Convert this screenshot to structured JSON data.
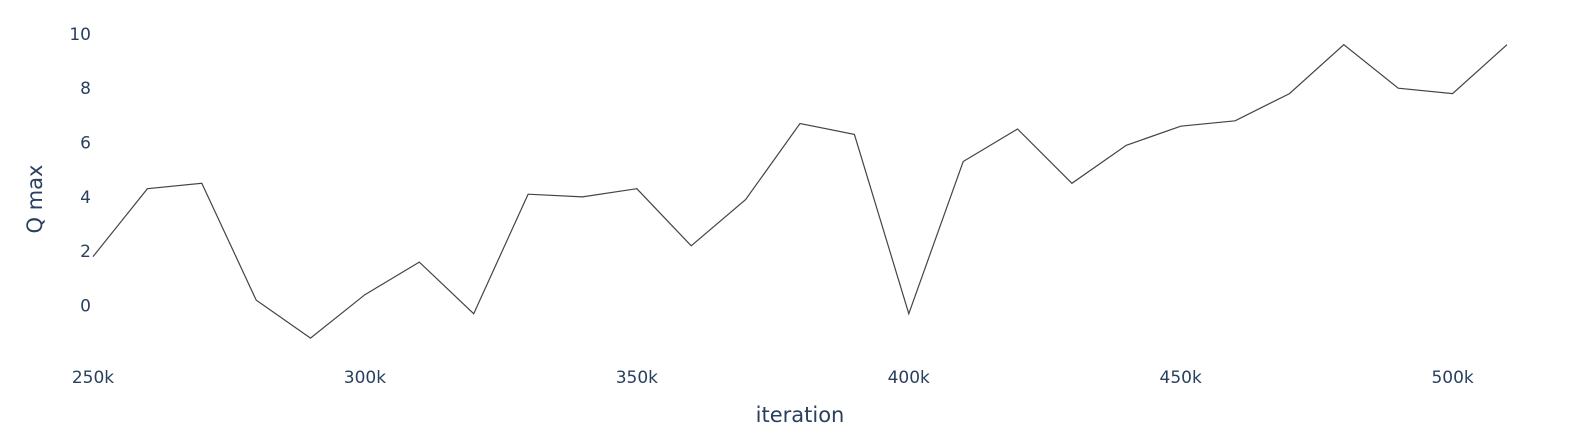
{
  "chart_data": {
    "type": "line",
    "xlabel": "iteration",
    "ylabel": "Q max",
    "xlim": [
      250000,
      510000
    ],
    "ylim": [
      -1.6,
      10.4
    ],
    "x_ticks": [
      250000,
      300000,
      350000,
      400000,
      450000,
      500000
    ],
    "x_tick_labels": [
      "250k",
      "300k",
      "350k",
      "400k",
      "450k",
      "500k"
    ],
    "y_ticks": [
      0,
      2,
      4,
      6,
      8,
      10
    ],
    "y_tick_labels": [
      "0",
      "2",
      "4",
      "6",
      "8",
      "10"
    ],
    "grid": false,
    "line_color": "#444444",
    "series": [
      {
        "x": [
          250000,
          260000,
          270000,
          280000,
          290000,
          300000,
          310000,
          320000,
          330000,
          340000,
          350000,
          360000,
          370000,
          380000,
          390000,
          400000,
          410000,
          420000,
          430000,
          440000,
          450000,
          460000,
          470000,
          480000,
          490000,
          500000,
          510000
        ],
        "values": [
          1.8,
          4.3,
          4.5,
          0.2,
          -1.2,
          0.4,
          1.6,
          -0.3,
          4.1,
          4.0,
          4.3,
          2.2,
          3.9,
          6.7,
          6.3,
          -0.3,
          5.3,
          6.5,
          4.5,
          5.9,
          6.6,
          6.8,
          7.8,
          9.6,
          8.0,
          7.8,
          9.6
        ]
      }
    ]
  }
}
